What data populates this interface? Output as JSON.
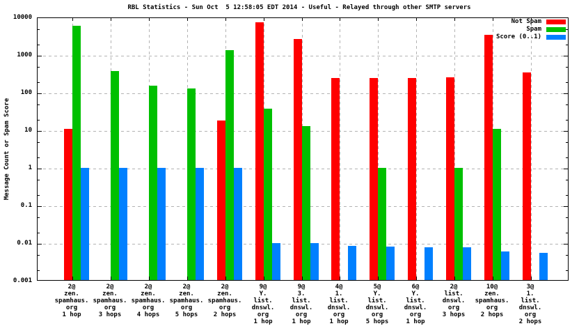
{
  "chart_data": {
    "type": "bar",
    "title": "RBL Statistics - Sun Oct  5 12:58:05 EDT 2014 - Useful - Relayed through other SMTP servers",
    "ylabel": "Message Count or Spam Score",
    "yscale": "log",
    "ylim": [
      0.001,
      10000
    ],
    "ytick_labels": [
      "10000",
      "1000",
      "100",
      "10",
      "1",
      "0.1",
      "0.01",
      "0.001"
    ],
    "grid": true,
    "legend_position": "top-right-inside",
    "colors": {
      "not_spam": "#ff0000",
      "spam": "#00c000",
      "score": "#0080ff",
      "gridline": "#b3b3b3",
      "border": "#000000"
    },
    "categories": [
      [
        "2@",
        "zen.",
        "spamhaus.",
        "org",
        "1 hop"
      ],
      [
        "2@",
        "zen.",
        "spamhaus.",
        "org",
        "3 hops"
      ],
      [
        "2@",
        "zen.",
        "spamhaus.",
        "org",
        "4 hops"
      ],
      [
        "2@",
        "zen.",
        "spamhaus.",
        "org",
        "5 hops"
      ],
      [
        "2@",
        "zen.",
        "spamhaus.",
        "org",
        "2 hops"
      ],
      [
        "9@",
        "Y.",
        "list.",
        "dnswl.",
        "org",
        "1 hop"
      ],
      [
        "9@",
        "3.",
        "list.",
        "dnswl.",
        "org",
        "1 hop"
      ],
      [
        "4@",
        "1.",
        "list.",
        "dnswl.",
        "org",
        "1 hop"
      ],
      [
        "5@",
        "Y.",
        "list.",
        "dnswl.",
        "org",
        "5 hops"
      ],
      [
        "6@",
        "Y.",
        "list.",
        "dnswl.",
        "org",
        "1 hop"
      ],
      [
        "2@",
        "list.",
        "dnswl.",
        "org",
        "3 hops"
      ],
      [
        "10@",
        "zen.",
        "spamhaus.",
        "org",
        "2 hops"
      ],
      [
        "3@",
        "1.",
        "list.",
        "dnswl.",
        "org",
        "2 hops"
      ]
    ],
    "series": [
      {
        "name": "Not Spam",
        "color": "#ff0000",
        "values": [
          11,
          null,
          null,
          null,
          18,
          7400,
          2700,
          240,
          240,
          250,
          260,
          3500,
          350
        ]
      },
      {
        "name": "Spam",
        "color": "#00c000",
        "values": [
          5900,
          380,
          150,
          130,
          1350,
          38,
          13,
          null,
          1,
          null,
          1,
          11,
          null
        ]
      },
      {
        "name": "Score (0..1)",
        "color": "#0080ff",
        "values": [
          1,
          1,
          1,
          1,
          1,
          0.01,
          0.0098,
          0.0085,
          0.008,
          0.0077,
          0.0077,
          0.006,
          0.0055
        ]
      }
    ]
  }
}
